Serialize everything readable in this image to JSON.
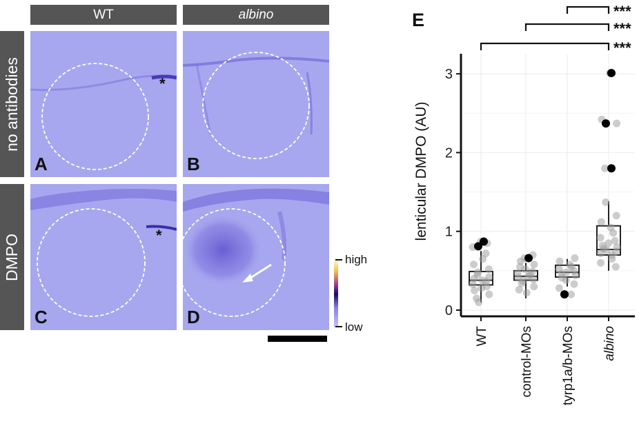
{
  "columns": {
    "wt": "WT",
    "albino": "albino"
  },
  "rows": {
    "no_antibodies": "no antibodies",
    "dmpo": "DMPO"
  },
  "panel_labels": {
    "a": "A",
    "b": "B",
    "c": "C",
    "d": "D",
    "e": "E"
  },
  "asterisk": "*",
  "colorbar": {
    "high": "high",
    "low": "low"
  },
  "colors": {
    "tissue_bg": "#a7a7ef",
    "label_bar": "#555555",
    "colormap": [
      "#ffffff",
      "#f6c24a",
      "#9a3f8a",
      "#1a0a6a",
      "#8a82e8",
      "#c7c3f5"
    ]
  },
  "chart_data": {
    "type": "box",
    "panel_label": "E",
    "ylabel": "lenticular DMPO (AU)",
    "categories": [
      "WT",
      "control-MOs",
      "tyrp1a/b-MOs",
      "albino"
    ],
    "ylim": [
      0,
      3.1
    ],
    "yticks": [
      "0",
      "1",
      "2",
      "3"
    ],
    "grid": true,
    "boxes": [
      {
        "category": "WT",
        "min": 0.1,
        "q1": 0.32,
        "median": 0.38,
        "q3": 0.49,
        "max": 0.75
      },
      {
        "category": "control-MOs",
        "min": 0.15,
        "q1": 0.38,
        "median": 0.43,
        "q3": 0.5,
        "max": 0.6
      },
      {
        "category": "tyrp1a/b-MOs",
        "min": 0.3,
        "q1": 0.42,
        "median": 0.48,
        "q3": 0.57,
        "max": 0.65
      },
      {
        "category": "albino",
        "min": 0.5,
        "q1": 0.7,
        "median": 0.77,
        "q3": 1.07,
        "max": 1.38
      }
    ],
    "points": [
      [
        0.87,
        0.85,
        0.8,
        0.72,
        0.65,
        0.58,
        0.52,
        0.48,
        0.45,
        0.42,
        0.4,
        0.38,
        0.36,
        0.33,
        0.3,
        0.28,
        0.25,
        0.2,
        0.15,
        0.1
      ],
      [
        0.7,
        0.66,
        0.62,
        0.58,
        0.55,
        0.52,
        0.49,
        0.47,
        0.45,
        0.43,
        0.41,
        0.39,
        0.37,
        0.34,
        0.3,
        0.26,
        0.22
      ],
      [
        0.66,
        0.62,
        0.58,
        0.55,
        0.52,
        0.5,
        0.48,
        0.46,
        0.44,
        0.41,
        0.38,
        0.33,
        0.28,
        0.2
      ],
      [
        3.01,
        2.42,
        2.37,
        1.8,
        1.37,
        1.2,
        1.12,
        1.05,
        0.98,
        0.92,
        0.88,
        0.85,
        0.82,
        0.8,
        0.78,
        0.76,
        0.74,
        0.72,
        0.7,
        0.65,
        0.6,
        0.55
      ]
    ],
    "highlighted_points": [
      {
        "category": "WT",
        "value": 0.87
      },
      {
        "category": "WT",
        "value": 0.81
      },
      {
        "category": "control-MOs",
        "value": 0.66
      },
      {
        "category": "tyrp1a/b-MOs",
        "value": 0.2
      },
      {
        "category": "albino",
        "value": 3.01
      },
      {
        "category": "albino",
        "value": 2.37
      },
      {
        "category": "albino",
        "value": 1.8
      }
    ],
    "significance": [
      {
        "from": "tyrp1a/b-MOs",
        "to": "albino",
        "label": "***"
      },
      {
        "from": "control-MOs",
        "to": "albino",
        "label": "***"
      },
      {
        "from": "WT",
        "to": "albino",
        "label": "***"
      }
    ]
  }
}
